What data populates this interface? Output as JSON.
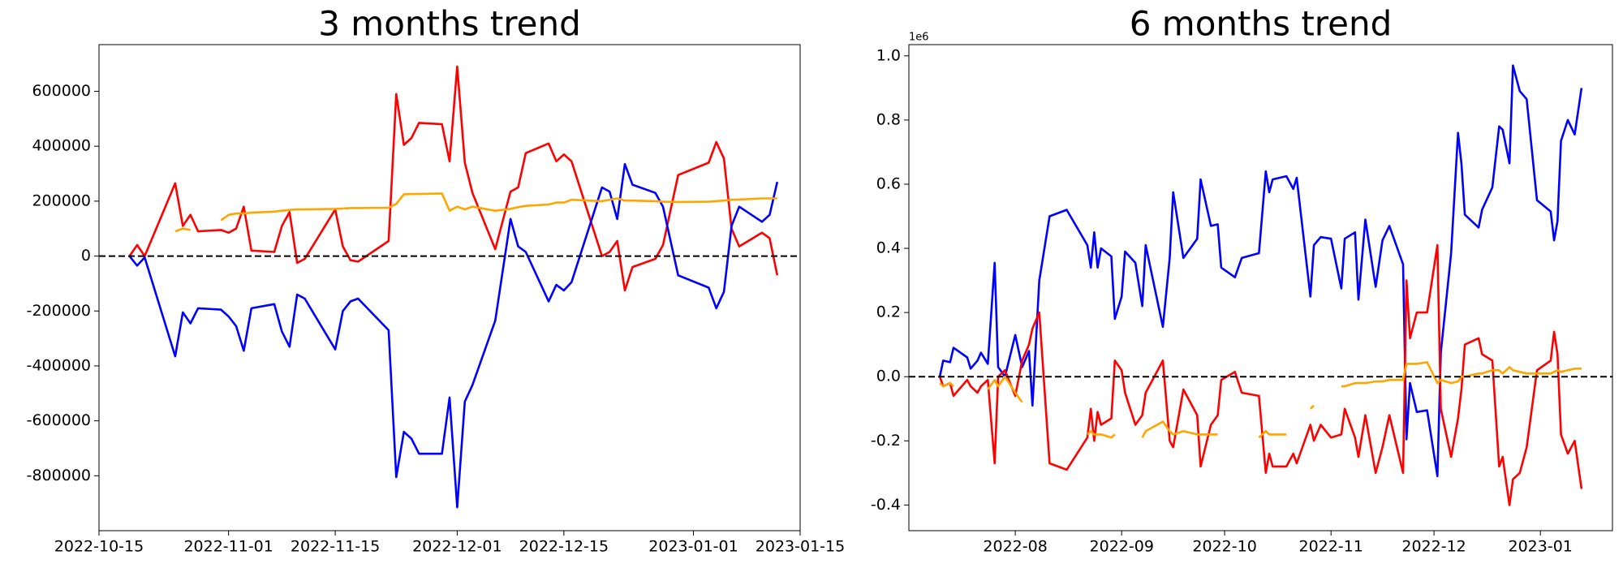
{
  "chart_data": [
    {
      "type": "line",
      "title": "3 months trend",
      "x": [
        "2022-10-19",
        "2022-10-20",
        "2022-10-21",
        "2022-10-25",
        "2022-10-26",
        "2022-10-27",
        "2022-10-28",
        "2022-10-31",
        "2022-11-01",
        "2022-11-02",
        "2022-11-03",
        "2022-11-04",
        "2022-11-07",
        "2022-11-08",
        "2022-11-09",
        "2022-11-10",
        "2022-11-11",
        "2022-11-15",
        "2022-11-16",
        "2022-11-17",
        "2022-11-18",
        "2022-11-22",
        "2022-11-23",
        "2022-11-24",
        "2022-11-25",
        "2022-11-26",
        "2022-11-29",
        "2022-11-30",
        "2022-12-01",
        "2022-12-02",
        "2022-12-03",
        "2022-12-06",
        "2022-12-08",
        "2022-12-09",
        "2022-12-10",
        "2022-12-13",
        "2022-12-14",
        "2022-12-15",
        "2022-12-16",
        "2022-12-20",
        "2022-12-21",
        "2022-12-22",
        "2022-12-23",
        "2022-12-24",
        "2022-12-27",
        "2022-12-28",
        "2022-12-30",
        "2023-01-03",
        "2023-01-04",
        "2023-01-05",
        "2023-01-06",
        "2023-01-07",
        "2023-01-10",
        "2023-01-11",
        "2023-01-12"
      ],
      "series": [
        {
          "color": "red",
          "values": [
            0,
            40000,
            0,
            265000,
            110000,
            150000,
            90000,
            95000,
            85000,
            100000,
            180000,
            20000,
            15000,
            110000,
            160000,
            -25000,
            -10000,
            170000,
            35000,
            -15000,
            -20000,
            55000,
            590000,
            405000,
            430000,
            485000,
            480000,
            345000,
            690000,
            340000,
            230000,
            25000,
            235000,
            250000,
            375000,
            410000,
            345000,
            370000,
            345000,
            0,
            15000,
            55000,
            -125000,
            -40000,
            -10000,
            40000,
            295000,
            340000,
            415000,
            355000,
            100000,
            35000,
            85000,
            65000,
            -70000
          ]
        },
        {
          "color": "blue",
          "values": [
            0,
            -35000,
            -5000,
            -365000,
            -205000,
            -245000,
            -190000,
            -195000,
            -220000,
            -255000,
            -345000,
            -190000,
            -175000,
            -275000,
            -330000,
            -140000,
            -155000,
            -340000,
            -200000,
            -165000,
            -155000,
            -270000,
            -805000,
            -640000,
            -665000,
            -720000,
            -720000,
            -515000,
            -915000,
            -530000,
            -470000,
            -235000,
            135000,
            35000,
            15000,
            -165000,
            -105000,
            -125000,
            -95000,
            250000,
            235000,
            135000,
            335000,
            260000,
            230000,
            180000,
            -70000,
            -115000,
            -190000,
            -130000,
            110000,
            180000,
            125000,
            150000,
            270000
          ]
        },
        {
          "color": "orange",
          "values": [
            null,
            null,
            null,
            90000,
            100000,
            95000,
            null,
            130000,
            150000,
            155000,
            155000,
            158000,
            162000,
            165000,
            168000,
            170000,
            170000,
            172000,
            173000,
            175000,
            175000,
            176000,
            190000,
            225000,
            226000,
            226000,
            228000,
            165000,
            180000,
            170000,
            180000,
            165000,
            172000,
            178000,
            183000,
            188000,
            195000,
            195000,
            205000,
            200000,
            205000,
            210000,
            202000,
            202000,
            200000,
            198000,
            197000,
            198000,
            200000,
            202000,
            205000,
            206000,
            210000,
            210000,
            210000
          ]
        }
      ],
      "xlim": [
        "2022-10-15",
        "2023-01-15"
      ],
      "xticks": [
        "2022-10-15",
        "2022-11-01",
        "2022-11-15",
        "2022-12-01",
        "2022-12-15",
        "2023-01-01",
        "2023-01-15"
      ],
      "ylim": [
        -1000000,
        770000
      ],
      "yticks": [
        -800000,
        -600000,
        -400000,
        -200000,
        0,
        200000,
        400000,
        600000
      ],
      "hline": 0
    },
    {
      "type": "line",
      "title": "6 months trend",
      "y_scale_label": "1e6",
      "x": [
        "2022-07-10",
        "2022-07-11",
        "2022-07-13",
        "2022-07-14",
        "2022-07-18",
        "2022-07-19",
        "2022-07-21",
        "2022-07-22",
        "2022-07-24",
        "2022-07-26",
        "2022-07-27",
        "2022-07-29",
        "2022-08-01",
        "2022-08-03",
        "2022-08-05",
        "2022-08-06",
        "2022-08-08",
        "2022-08-11",
        "2022-08-16",
        "2022-08-22",
        "2022-08-23",
        "2022-08-24",
        "2022-08-25",
        "2022-08-26",
        "2022-08-29",
        "2022-08-30",
        "2022-09-01",
        "2022-09-02",
        "2022-09-05",
        "2022-09-07",
        "2022-09-08",
        "2022-09-13",
        "2022-09-15",
        "2022-09-16",
        "2022-09-19",
        "2022-09-23",
        "2022-09-24",
        "2022-09-27",
        "2022-09-29",
        "2022-09-30",
        "2022-10-04",
        "2022-10-06",
        "2022-10-11",
        "2022-10-13",
        "2022-10-14",
        "2022-10-15",
        "2022-10-19",
        "2022-10-21",
        "2022-10-22",
        "2022-10-26",
        "2022-10-27",
        "2022-10-29",
        "2022-11-01",
        "2022-11-04",
        "2022-11-05",
        "2022-11-08",
        "2022-11-09",
        "2022-11-11",
        "2022-11-14",
        "2022-11-16",
        "2022-11-18",
        "2022-11-22",
        "2022-11-23",
        "2022-11-24",
        "2022-11-26",
        "2022-11-29",
        "2022-12-02",
        "2022-12-03",
        "2022-12-06",
        "2022-12-08",
        "2022-12-09",
        "2022-12-10",
        "2022-12-14",
        "2022-12-15",
        "2022-12-18",
        "2022-12-20",
        "2022-12-21",
        "2022-12-23",
        "2022-12-24",
        "2022-12-26",
        "2022-12-28",
        "2022-12-31",
        "2023-01-04",
        "2023-01-05",
        "2023-01-06",
        "2023-01-07",
        "2023-01-09",
        "2023-01-11",
        "2023-01-13"
      ],
      "series": [
        {
          "color": "blue",
          "values": [
            0.0,
            0.05,
            0.045,
            0.09,
            0.06,
            0.025,
            0.05,
            0.075,
            0.04,
            0.355,
            0.03,
            0.0,
            0.13,
            0.03,
            0.08,
            -0.09,
            0.3,
            0.5,
            0.52,
            0.41,
            0.34,
            0.45,
            0.34,
            0.4,
            0.375,
            0.18,
            0.25,
            0.39,
            0.355,
            0.22,
            0.41,
            0.155,
            0.37,
            0.575,
            0.37,
            0.43,
            0.615,
            0.47,
            0.475,
            0.34,
            0.31,
            0.37,
            0.385,
            0.64,
            0.575,
            0.615,
            0.625,
            0.585,
            0.62,
            0.25,
            0.41,
            0.435,
            0.43,
            0.275,
            0.43,
            0.45,
            0.24,
            0.49,
            0.28,
            0.425,
            0.47,
            0.35,
            -0.195,
            -0.02,
            -0.11,
            -0.105,
            -0.31,
            0.075,
            0.385,
            0.76,
            0.665,
            0.505,
            0.465,
            0.52,
            0.59,
            0.78,
            0.77,
            0.665,
            0.97,
            0.89,
            0.865,
            0.55,
            0.515,
            0.425,
            0.485,
            0.735,
            0.8,
            0.755,
            0.9
          ]
        },
        {
          "color": "red",
          "values": [
            0.0,
            -0.03,
            -0.02,
            -0.06,
            -0.01,
            -0.03,
            -0.05,
            -0.03,
            -0.01,
            -0.27,
            0.0,
            0.02,
            -0.06,
            0.05,
            0.1,
            0.15,
            0.2,
            -0.27,
            -0.29,
            -0.19,
            -0.1,
            -0.2,
            -0.11,
            -0.15,
            -0.13,
            0.05,
            0.02,
            -0.05,
            -0.15,
            -0.12,
            -0.05,
            0.05,
            -0.2,
            -0.22,
            -0.04,
            -0.12,
            -0.28,
            -0.15,
            -0.12,
            -0.01,
            0.015,
            -0.05,
            -0.06,
            -0.3,
            -0.24,
            -0.28,
            -0.28,
            -0.24,
            -0.27,
            -0.15,
            -0.2,
            -0.15,
            -0.19,
            -0.18,
            -0.1,
            -0.19,
            -0.25,
            -0.12,
            -0.3,
            -0.22,
            -0.12,
            -0.3,
            0.3,
            0.12,
            0.2,
            0.2,
            0.41,
            -0.1,
            -0.25,
            -0.13,
            -0.04,
            0.1,
            0.12,
            0.07,
            0.05,
            -0.28,
            -0.25,
            -0.4,
            -0.32,
            -0.3,
            -0.22,
            0.02,
            0.05,
            0.14,
            0.07,
            -0.18,
            -0.24,
            -0.2,
            -0.35
          ]
        },
        {
          "color": "orange",
          "values": [
            -0.02,
            -0.03,
            -0.02,
            -0.03,
            null,
            null,
            null,
            null,
            -0.04,
            -0.01,
            -0.03,
            0.0,
            -0.05,
            -0.08,
            null,
            null,
            null,
            null,
            null,
            -0.18,
            -0.17,
            -0.18,
            -0.18,
            -0.18,
            -0.19,
            -0.18,
            null,
            null,
            null,
            -0.19,
            -0.17,
            -0.14,
            -0.17,
            -0.18,
            -0.17,
            -0.18,
            -0.18,
            -0.18,
            -0.18,
            null,
            null,
            null,
            -0.19,
            -0.17,
            -0.18,
            -0.18,
            -0.18,
            null,
            null,
            -0.1,
            -0.09,
            null,
            null,
            -0.03,
            -0.03,
            -0.02,
            -0.02,
            -0.02,
            -0.015,
            -0.015,
            -0.01,
            -0.01,
            0.04,
            0.04,
            0.04,
            0.045,
            -0.02,
            -0.01,
            -0.02,
            -0.015,
            0.0,
            0.0,
            0.01,
            0.01,
            0.02,
            0.02,
            0.01,
            0.03,
            0.02,
            0.015,
            0.01,
            0.01,
            0.01,
            0.015,
            0.02,
            0.015,
            0.02,
            0.025,
            0.025
          ]
        }
      ],
      "xlim": [
        "2022-07-01",
        "2023-01-22"
      ],
      "xticks": [
        "2022-08",
        "2022-09",
        "2022-10",
        "2022-11",
        "2022-12",
        "2023-01"
      ],
      "ylim": [
        -0.48,
        1.035
      ],
      "yticks": [
        -0.4,
        -0.2,
        {
          "value": 0,
          "label": "0.0"
        },
        0.2,
        0.4,
        0.6,
        0.8,
        {
          "value": 1,
          "label": "1.0"
        }
      ],
      "hline": 0
    }
  ]
}
